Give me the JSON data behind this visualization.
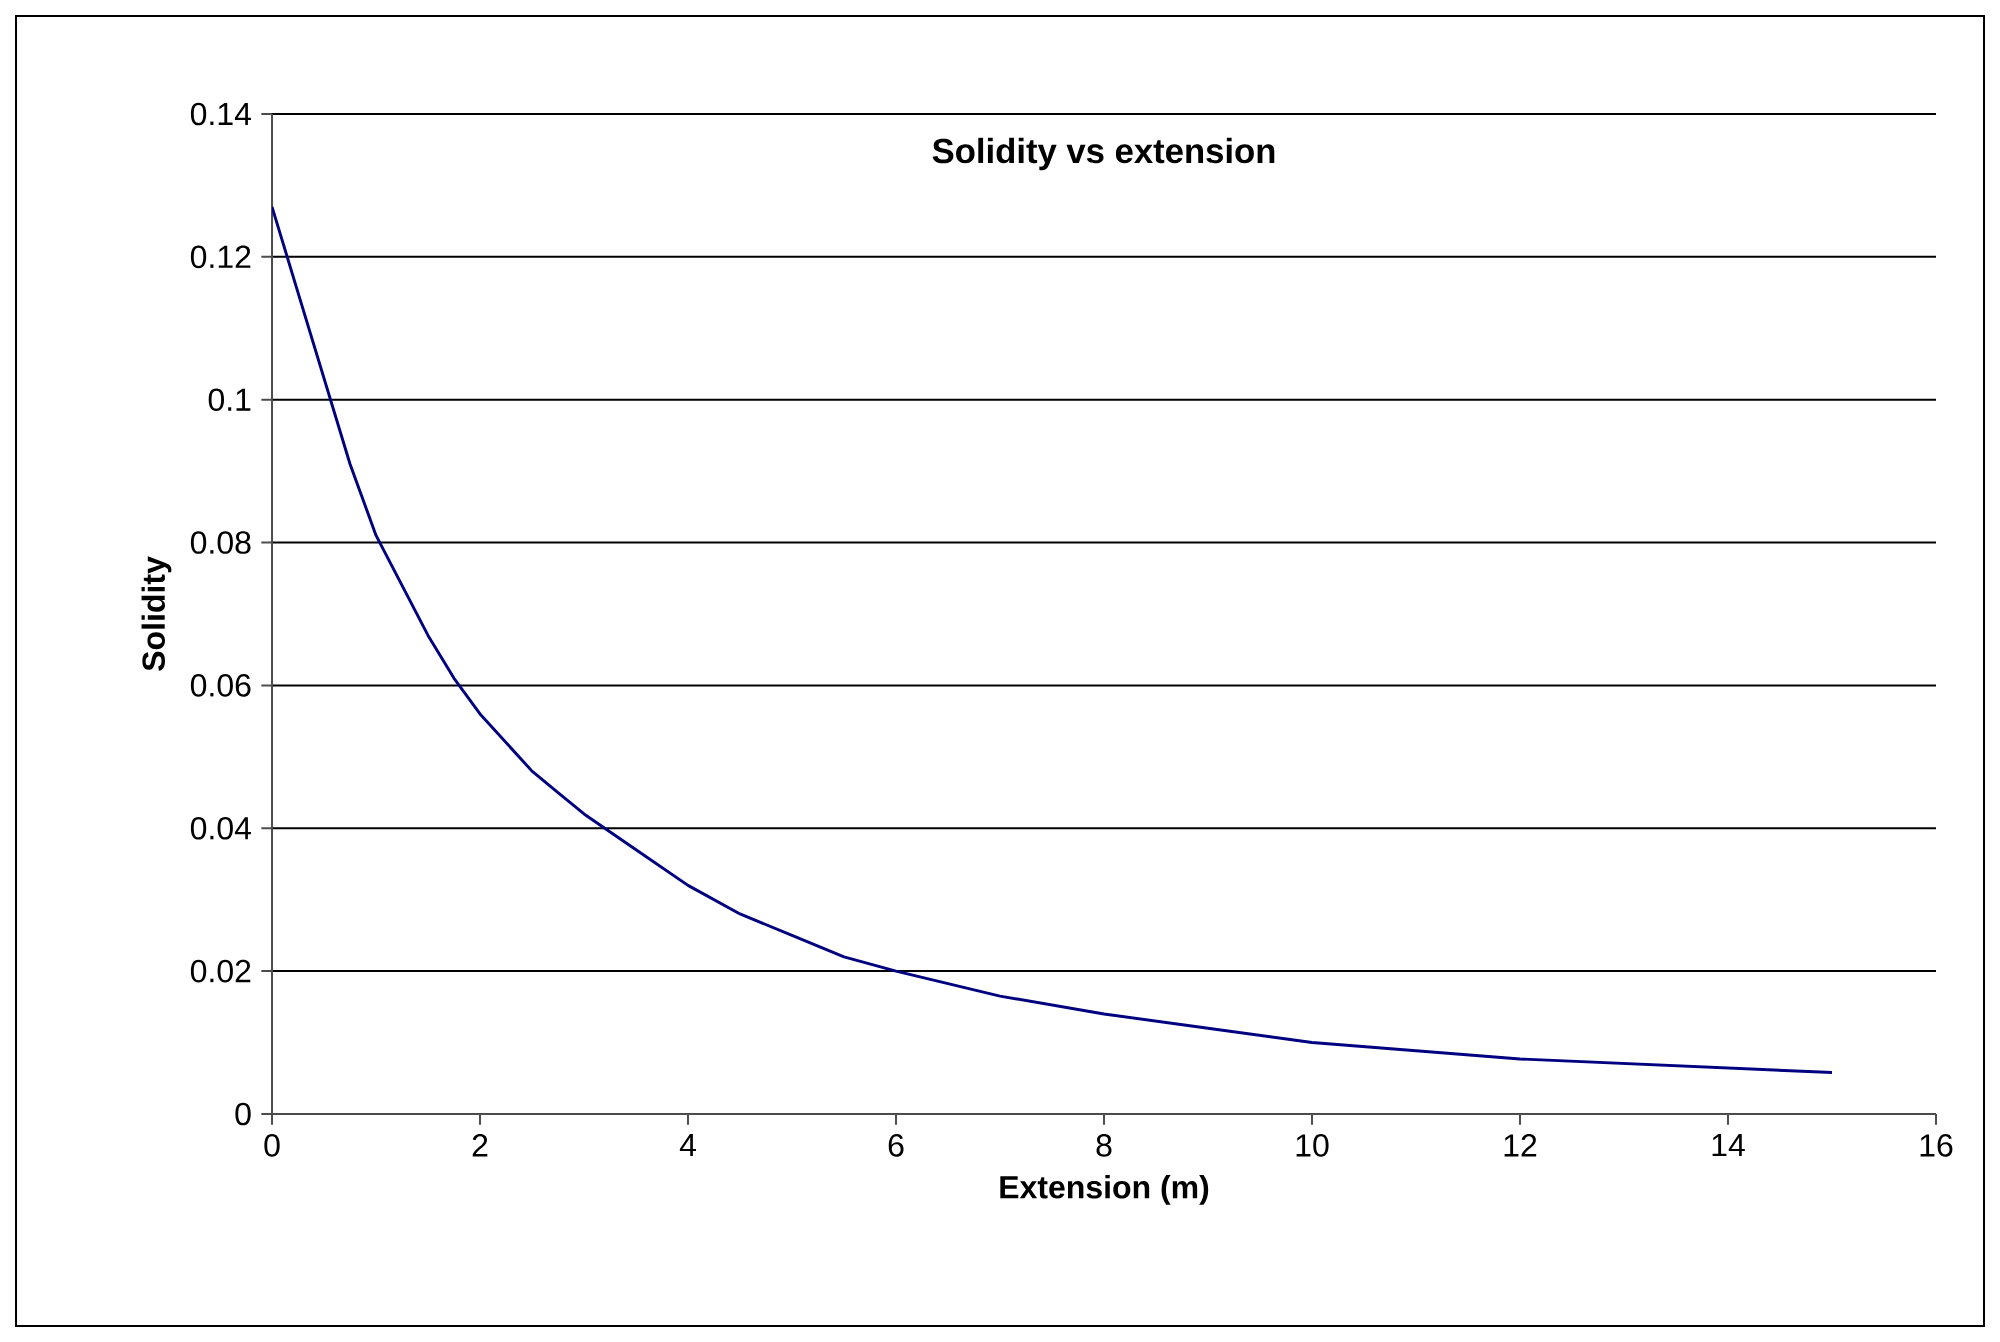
{
  "chart_data": {
    "type": "line",
    "title": "Solidity vs extension",
    "xlabel": "Extension (m)",
    "ylabel": "Solidity",
    "x": [
      0,
      0.25,
      0.5,
      0.75,
      1,
      1.25,
      1.5,
      1.75,
      2,
      2.5,
      2.75,
      3,
      3.5,
      4,
      4.5,
      5,
      5.5,
      6,
      7,
      8,
      9,
      10,
      12,
      15
    ],
    "series": [
      {
        "color": "#000080",
        "values": [
          0.127,
          0.115,
          0.103,
          0.091,
          0.081,
          0.074,
          0.067,
          0.061,
          0.056,
          0.048,
          0.045,
          0.042,
          0.037,
          0.032,
          0.028,
          0.025,
          0.022,
          0.02,
          0.0165,
          0.014,
          0.012,
          0.01,
          0.0077,
          0.0058
        ]
      }
    ],
    "xlim": [
      0,
      16
    ],
    "xticks": [
      0,
      2,
      4,
      6,
      8,
      10,
      12,
      14,
      16
    ],
    "ylim": [
      0,
      0.14
    ],
    "yticks": [
      0,
      0.02,
      0.04,
      0.06,
      0.08,
      0.1,
      0.12,
      0.14
    ],
    "grid": "y",
    "marker": "none",
    "line_style": "solid"
  }
}
